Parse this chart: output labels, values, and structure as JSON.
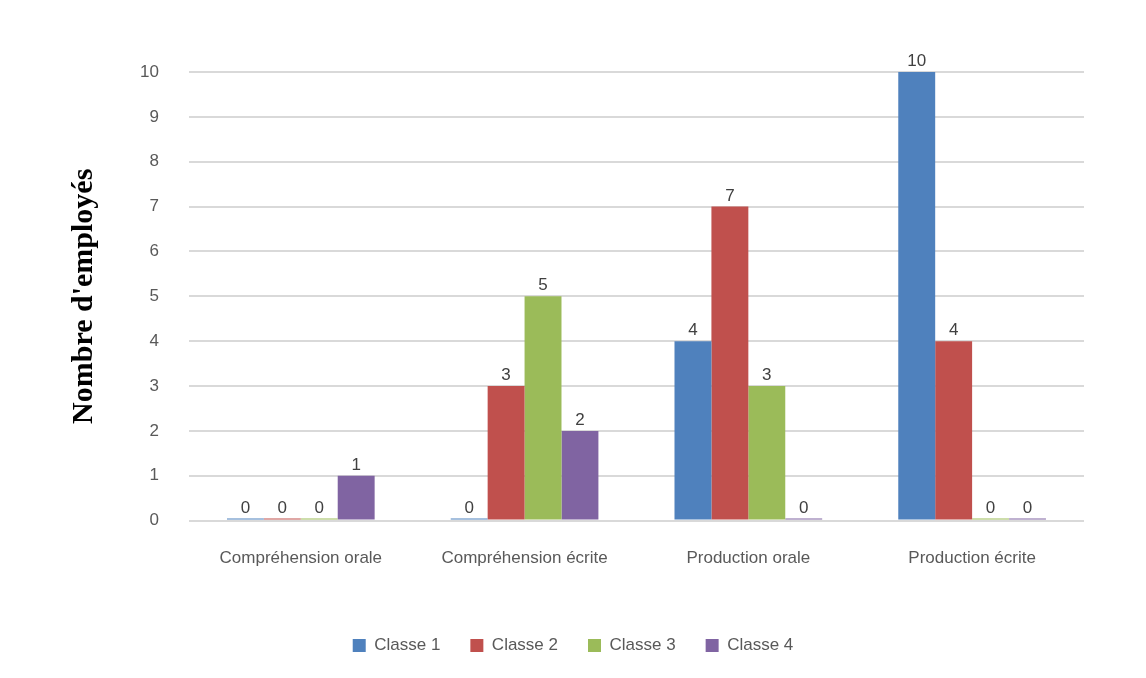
{
  "chart_data": {
    "type": "bar",
    "ylabel": "Nombre d'employés",
    "categories": [
      "Compréhension orale",
      "Compréhension écrite",
      "Production orale",
      "Production écrite"
    ],
    "series": [
      {
        "name": "Classe 1",
        "color": "#4f81bd",
        "values": [
          0,
          0,
          4,
          10
        ]
      },
      {
        "name": "Classe 2",
        "color": "#c0504d",
        "values": [
          0,
          3,
          7,
          4
        ]
      },
      {
        "name": "Classe 3",
        "color": "#9bbb59",
        "values": [
          0,
          5,
          3,
          0
        ]
      },
      {
        "name": "Classe 4",
        "color": "#8064a2",
        "values": [
          1,
          2,
          0,
          0
        ]
      }
    ],
    "ylim": [
      0,
      10
    ],
    "yticks": [
      0,
      1,
      2,
      3,
      4,
      5,
      6,
      7,
      8,
      9,
      10
    ],
    "grid": "y",
    "legend": "bottom",
    "data_labels": true
  }
}
